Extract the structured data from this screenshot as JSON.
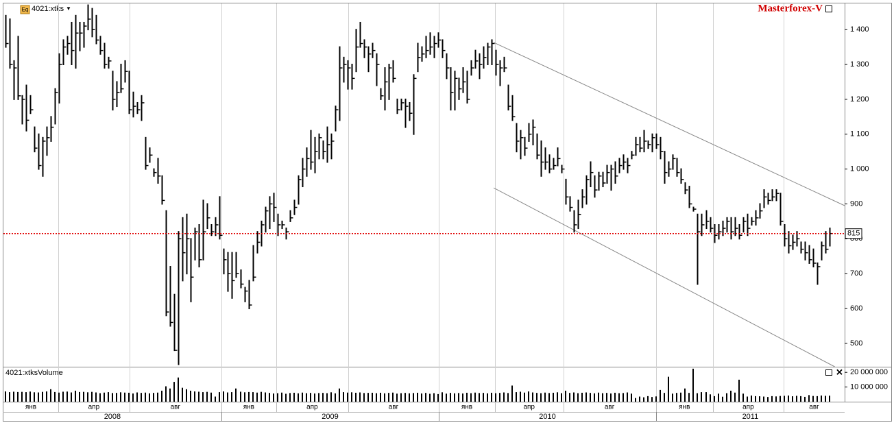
{
  "chart_data": [
    {
      "type": "ohlc",
      "title": "4021:xtks",
      "icon_label": "Eq",
      "brand": "Masterforex-V",
      "xlim": [
        -0.5,
        203.7
      ],
      "xticks": [
        12.8,
        30.1,
        52.4,
        65.7,
        83.2,
        105.2,
        118.8,
        135.4,
        157.9,
        171.7,
        188.9
      ],
      "month_labels": [
        "янв",
        "апр",
        "авг",
        "янв",
        "апр",
        "авг",
        "янв",
        "апр",
        "авг",
        "янв",
        "апр",
        "авг"
      ],
      "year_ticks": [
        52.4,
        105.2,
        157.9
      ],
      "year_labels": [
        "2008",
        "2009",
        "2010",
        "2011"
      ],
      "ylim": [
        433,
        1475
      ],
      "yticks": [
        {
          "value": 500,
          "label": "500"
        },
        {
          "value": 600,
          "label": "600"
        },
        {
          "value": 700,
          "label": "700"
        },
        {
          "value": 800,
          "label": "800"
        },
        {
          "value": 900,
          "label": "900"
        },
        {
          "value": 1000,
          "label": "1 000"
        },
        {
          "value": 1100,
          "label": "1 100"
        },
        {
          "value": 1200,
          "label": "1 200"
        },
        {
          "value": 1300,
          "label": "1 300"
        },
        {
          "value": 1400,
          "label": "1 400"
        }
      ],
      "color": "#000000",
      "last_price": 815,
      "last_price_color": "#e00000",
      "trend_lines": [
        {
          "x": [
            118.5,
            203.7
          ],
          "y": [
            1363,
            895
          ]
        },
        {
          "x": [
            118.5,
            201.3
          ],
          "y": [
            946,
            433
          ]
        }
      ],
      "high": [
        1440,
        1430,
        1310,
        1380,
        1210,
        1240,
        1210,
        1120,
        1100,
        1090,
        1120,
        1150,
        1230,
        1330,
        1370,
        1380,
        1420,
        1440,
        1420,
        1420,
        1470,
        1460,
        1440,
        1380,
        1360,
        1320,
        1280,
        1250,
        1300,
        1310,
        1280,
        1220,
        1190,
        1210,
        1090,
        1060,
        1000,
        1030,
        980,
        880,
        720,
        640,
        820,
        860,
        870,
        800,
        830,
        840,
        910,
        900,
        840,
        860,
        920,
        770,
        760,
        760,
        760,
        710,
        660,
        680,
        780,
        820,
        850,
        890,
        920,
        930,
        870,
        850,
        830,
        880,
        910,
        980,
        1030,
        1060,
        1110,
        1090,
        1100,
        1080,
        1120,
        1100,
        1180,
        1350,
        1320,
        1310,
        1300,
        1400,
        1420,
        1370,
        1350,
        1360,
        1330,
        1230,
        1290,
        1300,
        1310,
        1200,
        1200,
        1200,
        1190,
        1270,
        1360,
        1350,
        1380,
        1390,
        1380,
        1390,
        1370,
        1330,
        1290,
        1280,
        1260,
        1290,
        1280,
        1310,
        1340,
        1330,
        1350,
        1360,
        1370,
        1340,
        1310,
        1320,
        1240,
        1210,
        1130,
        1110,
        1090,
        1130,
        1140,
        1100,
        1080,
        1060,
        1040,
        1030,
        1060,
        1010,
        970,
        920,
        880,
        910,
        940,
        980,
        1020,
        980,
        990,
        990,
        1010,
        1010,
        1020,
        1030,
        1040,
        1030,
        1050,
        1090,
        1090,
        1110,
        1080,
        1100,
        1100,
        1090,
        1050,
        1020,
        1040,
        1030,
        1000,
        960,
        950,
        890,
        870,
        870,
        880,
        860,
        840,
        840,
        850,
        860,
        860,
        860,
        840,
        860,
        870,
        860,
        880,
        900,
        940,
        930,
        940,
        940,
        930,
        840,
        820,
        810,
        820,
        790,
        790,
        780,
        770,
        730,
        790,
        820,
        830
      ],
      "low": [
        1350,
        1290,
        1200,
        1200,
        1130,
        1110,
        1160,
        1050,
        1000,
        980,
        1040,
        1080,
        1130,
        1190,
        1300,
        1330,
        1300,
        1290,
        1340,
        1350,
        1400,
        1380,
        1360,
        1330,
        1290,
        1290,
        1170,
        1180,
        1220,
        1250,
        1160,
        1150,
        1160,
        1140,
        1000,
        1020,
        980,
        960,
        900,
        580,
        550,
        480,
        440,
        680,
        700,
        620,
        740,
        720,
        740,
        830,
        810,
        810,
        800,
        700,
        650,
        630,
        690,
        660,
        620,
        600,
        680,
        760,
        780,
        820,
        830,
        850,
        810,
        830,
        800,
        850,
        870,
        900,
        950,
        980,
        1000,
        990,
        1030,
        1030,
        1020,
        1030,
        1110,
        1140,
        1250,
        1230,
        1230,
        1280,
        1350,
        1320,
        1280,
        1320,
        1240,
        1200,
        1170,
        1200,
        1250,
        1160,
        1170,
        1120,
        1140,
        1100,
        1280,
        1310,
        1320,
        1330,
        1320,
        1350,
        1320,
        1260,
        1170,
        1170,
        1200,
        1220,
        1190,
        1270,
        1290,
        1260,
        1290,
        1300,
        1300,
        1270,
        1240,
        1280,
        1170,
        1140,
        1050,
        1030,
        1040,
        1080,
        1070,
        1030,
        980,
        1000,
        990,
        1000,
        1010,
        990,
        900,
        880,
        820,
        830,
        890,
        900,
        950,
        920,
        940,
        950,
        960,
        940,
        960,
        990,
        1000,
        990,
        1030,
        1040,
        1050,
        1050,
        1060,
        1050,
        1060,
        1030,
        960,
        980,
        1000,
        980,
        960,
        930,
        890,
        880,
        670,
        810,
        830,
        820,
        790,
        800,
        810,
        820,
        800,
        810,
        800,
        820,
        810,
        840,
        840,
        860,
        890,
        900,
        910,
        910,
        840,
        780,
        760,
        770,
        780,
        760,
        740,
        730,
        720,
        670,
        740,
        760,
        780
      ],
      "close": [
        1360,
        1300,
        1290,
        1210,
        1200,
        1140,
        1170,
        1060,
        1010,
        1080,
        1090,
        1120,
        1220,
        1300,
        1350,
        1360,
        1340,
        1390,
        1390,
        1410,
        1430,
        1400,
        1370,
        1340,
        1300,
        1310,
        1200,
        1220,
        1230,
        1280,
        1170,
        1180,
        1170,
        1190,
        1010,
        1040,
        990,
        980,
        910,
        590,
        560,
        480,
        800,
        760,
        800,
        690,
        820,
        740,
        820,
        860,
        820,
        840,
        810,
        740,
        700,
        680,
        700,
        670,
        650,
        610,
        690,
        790,
        840,
        880,
        900,
        890,
        840,
        840,
        820,
        860,
        890,
        970,
        1000,
        1030,
        1020,
        1050,
        1090,
        1050,
        1070,
        1080,
        1170,
        1290,
        1300,
        1290,
        1260,
        1350,
        1360,
        1350,
        1330,
        1340,
        1300,
        1210,
        1250,
        1290,
        1260,
        1170,
        1190,
        1180,
        1160,
        1260,
        1320,
        1330,
        1340,
        1350,
        1360,
        1370,
        1340,
        1290,
        1220,
        1260,
        1230,
        1250,
        1200,
        1290,
        1310,
        1300,
        1320,
        1350,
        1360,
        1300,
        1290,
        1290,
        1180,
        1150,
        1080,
        1090,
        1060,
        1100,
        1120,
        1040,
        1020,
        1020,
        1000,
        1010,
        1030,
        1000,
        920,
        890,
        840,
        870,
        920,
        970,
        990,
        940,
        980,
        960,
        990,
        1000,
        980,
        1010,
        1020,
        1010,
        1040,
        1070,
        1060,
        1080,
        1070,
        1090,
        1070,
        1050,
        990,
        1000,
        1030,
        990,
        970,
        940,
        900,
        885,
        820,
        840,
        850,
        830,
        810,
        820,
        830,
        850,
        820,
        830,
        810,
        850,
        830,
        850,
        860,
        880,
        920,
        910,
        920,
        930,
        850,
        800,
        780,
        790,
        800,
        770,
        760,
        740,
        730,
        720,
        780,
        770,
        815
      ]
    },
    {
      "type": "bar",
      "title": "4021:xtksVolume",
      "color": "#000000",
      "ylim": [
        0,
        22900000
      ],
      "yticks": [
        {
          "value": 10000000,
          "label": "10 000 000"
        },
        {
          "value": 20000000,
          "label": "20 000 000"
        }
      ],
      "values": [
        7000000,
        6500000,
        6800000,
        6600000,
        6700000,
        6500000,
        6900000,
        6400000,
        6300000,
        6700000,
        7000000,
        8500000,
        6600000,
        6200000,
        6800000,
        6900000,
        6300000,
        7500000,
        6600000,
        6700000,
        6400000,
        6700000,
        6300000,
        5800000,
        6200000,
        6500000,
        5900000,
        6000000,
        6400000,
        6200000,
        6100000,
        5600000,
        6300000,
        6000000,
        6200000,
        5700000,
        6000000,
        6200000,
        7500000,
        10500000,
        9000000,
        13500000,
        16500000,
        9500000,
        8500000,
        7500000,
        7000000,
        6800000,
        6500000,
        6700000,
        6200000,
        3500000,
        6500000,
        7000000,
        6300000,
        6500000,
        9000000,
        6800000,
        6400000,
        6600000,
        6500000,
        6200000,
        6700000,
        6300000,
        6000000,
        5600000,
        5800000,
        6200000,
        5400000,
        5900000,
        6100000,
        5700000,
        6200000,
        5800000,
        6000000,
        5600000,
        5900000,
        6000000,
        5800000,
        6400000,
        5700000,
        9000000,
        6500000,
        6200000,
        6400000,
        6100000,
        6300000,
        5900000,
        6000000,
        6100000,
        5800000,
        6100000,
        5700000,
        6000000,
        6200000,
        5500000,
        5800000,
        6000000,
        5700000,
        5900000,
        6100000,
        5600000,
        6000000,
        5400000,
        5800000,
        5200000,
        6400000,
        5500000,
        6000000,
        5700000,
        5900000,
        5600000,
        6100000,
        5800000,
        6200000,
        5900000,
        6000000,
        5700000,
        6100000,
        5800000,
        6000000,
        6300000,
        5900000,
        11000000,
        6500000,
        6800000,
        6200000,
        7000000,
        6300000,
        6000000,
        5800000,
        6200000,
        5900000,
        6100000,
        6400000,
        5800000,
        7500000,
        6000000,
        6300000,
        5800000,
        6100000,
        6300000,
        6000000,
        5700000,
        6200000,
        5800000,
        6000000,
        5600000,
        6100000,
        5800000,
        5900000,
        6300000,
        5500000,
        2500000,
        3500000,
        3000000,
        3800000,
        3200000,
        3600000,
        8000000,
        6000000,
        17000000,
        5500000,
        6000000,
        6200000,
        9000000,
        6000000,
        22500000,
        5800000,
        6500000,
        6500000,
        5000000,
        3800000,
        5500000,
        3400000,
        5800000,
        7500000,
        6200000,
        15000000,
        5500000,
        3500000,
        4200000,
        3800000,
        3700000,
        3500000,
        3200000,
        3800000,
        3600000,
        3900000,
        4000000,
        4200000,
        3700000,
        4000000,
        3800000,
        3300000,
        4500000,
        3900000,
        3800000,
        4200000,
        4000000,
        4100000
      ]
    }
  ]
}
